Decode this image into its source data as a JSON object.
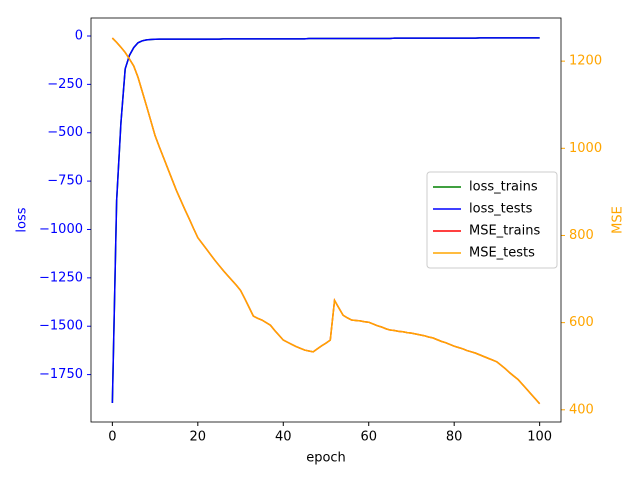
{
  "chart_data": {
    "type": "line",
    "x_label": "epoch",
    "y_label": "loss",
    "y2_label": "MSE",
    "x": [
      0,
      1,
      2,
      3,
      4,
      5,
      6,
      7,
      8,
      9,
      10,
      11,
      12,
      13,
      14,
      15,
      16,
      17,
      18,
      19,
      20,
      21,
      22,
      23,
      24,
      25,
      26,
      27,
      28,
      29,
      30,
      31,
      32,
      33,
      34,
      35,
      36,
      37,
      38,
      39,
      40,
      41,
      42,
      43,
      44,
      45,
      46,
      47,
      48,
      49,
      50,
      51,
      52,
      53,
      54,
      55,
      56,
      57,
      58,
      59,
      60,
      61,
      62,
      63,
      64,
      65,
      66,
      67,
      68,
      69,
      70,
      71,
      72,
      73,
      74,
      75,
      76,
      77,
      78,
      79,
      80,
      81,
      82,
      83,
      84,
      85,
      86,
      87,
      88,
      89,
      90,
      91,
      92,
      93,
      94,
      95,
      96,
      97,
      98,
      99,
      100
    ],
    "xlim": [
      -5,
      105
    ],
    "xticks": [
      0,
      20,
      40,
      60,
      80,
      100
    ],
    "ylim": [
      -1995,
      93
    ],
    "yticks": [
      {
        "value": 0,
        "label": "0"
      },
      {
        "value": -250,
        "label": "−250"
      },
      {
        "value": -500,
        "label": "−500"
      },
      {
        "value": -750,
        "label": "−750"
      },
      {
        "value": -1000,
        "label": "−1000"
      },
      {
        "value": -1250,
        "label": "−1250"
      },
      {
        "value": -1500,
        "label": "−1500"
      },
      {
        "value": -1750,
        "label": "−1750"
      }
    ],
    "y2lim": [
      372,
      1299
    ],
    "y2ticks": [
      400,
      600,
      800,
      1000,
      1200
    ],
    "y_color": "#0000ff",
    "y2_color": "#ffa500",
    "legend": "center right",
    "series": [
      {
        "name": "loss_trains",
        "color": "#008000",
        "axis": "y",
        "values": [
          -1897,
          -850,
          -450,
          -170,
          -100,
          -60,
          -35,
          -25,
          -20,
          -18,
          -17,
          -16,
          -16,
          -16,
          -16,
          -16,
          -16,
          -16,
          -16,
          -16,
          -16,
          -16,
          -16,
          -16,
          -16,
          -16,
          -15,
          -15,
          -15,
          -15,
          -15,
          -15,
          -15,
          -15,
          -15,
          -15,
          -15,
          -15,
          -15,
          -15,
          -15,
          -15,
          -15,
          -15,
          -15,
          -15,
          -13,
          -13,
          -13,
          -13,
          -13,
          -13,
          -13,
          -13,
          -13,
          -13,
          -13,
          -13,
          -13,
          -13,
          -13,
          -13,
          -13,
          -13,
          -13,
          -13,
          -11,
          -11,
          -11,
          -11,
          -11,
          -11,
          -11,
          -11,
          -11,
          -11,
          -11,
          -11,
          -11,
          -11,
          -11,
          -11,
          -11,
          -11,
          -11,
          -11,
          -10,
          -10,
          -10,
          -10,
          -10,
          -10,
          -10,
          -10,
          -10,
          -10,
          -10,
          -10,
          -10,
          -10,
          -10
        ]
      },
      {
        "name": "loss_tests",
        "color": "#0000ff",
        "axis": "y",
        "values": [
          -1897,
          -850,
          -450,
          -170,
          -100,
          -60,
          -35,
          -25,
          -20,
          -18,
          -17,
          -16,
          -16,
          -16,
          -16,
          -16,
          -16,
          -16,
          -16,
          -16,
          -16,
          -16,
          -16,
          -16,
          -16,
          -16,
          -15,
          -15,
          -15,
          -15,
          -15,
          -15,
          -15,
          -15,
          -15,
          -15,
          -15,
          -15,
          -15,
          -15,
          -15,
          -15,
          -15,
          -15,
          -15,
          -15,
          -13,
          -13,
          -13,
          -13,
          -13,
          -13,
          -13,
          -13,
          -13,
          -13,
          -13,
          -13,
          -13,
          -13,
          -13,
          -13,
          -13,
          -13,
          -13,
          -13,
          -11,
          -11,
          -11,
          -11,
          -11,
          -11,
          -11,
          -11,
          -11,
          -11,
          -11,
          -11,
          -11,
          -11,
          -11,
          -11,
          -11,
          -11,
          -11,
          -11,
          -10,
          -10,
          -10,
          -10,
          -10,
          -10,
          -10,
          -10,
          -10,
          -10,
          -10,
          -10,
          -10,
          -10,
          -10
        ]
      },
      {
        "name": "MSE_trains",
        "color": "#ff0000",
        "axis": "y2",
        "values": [
          1253,
          1243,
          1232,
          1220,
          1205,
          1189,
          1163,
          1130,
          1097,
          1063,
          1029,
          1003,
          978,
          953,
          928,
          903,
          881,
          859,
          838,
          816,
          795,
          782,
          769,
          756,
          743,
          731,
          719,
          708,
          697,
          686,
          674,
          655,
          635,
          615,
          610,
          606,
          600,
          594,
          582,
          571,
          560,
          555,
          550,
          545,
          541,
          537,
          535,
          533,
          540,
          547,
          553,
          560,
          651,
          634,
          617,
          611,
          606,
          605,
          604,
          602,
          601,
          597,
          593,
          590,
          586,
          583,
          582,
          580,
          579,
          577,
          576,
          574,
          572,
          570,
          567,
          565,
          561,
          557,
          554,
          550,
          546,
          543,
          540,
          536,
          533,
          530,
          526,
          522,
          518,
          514,
          510,
          502,
          494,
          485,
          477,
          469,
          458,
          447,
          436,
          425,
          414
        ]
      },
      {
        "name": "MSE_tests",
        "color": "#ffa500",
        "axis": "y2",
        "values": [
          1253,
          1243,
          1232,
          1220,
          1205,
          1189,
          1163,
          1130,
          1097,
          1063,
          1029,
          1003,
          978,
          953,
          928,
          903,
          881,
          859,
          838,
          816,
          795,
          782,
          769,
          756,
          743,
          731,
          719,
          708,
          697,
          686,
          674,
          655,
          635,
          615,
          610,
          606,
          600,
          594,
          582,
          571,
          560,
          555,
          550,
          545,
          541,
          537,
          535,
          533,
          540,
          547,
          553,
          560,
          651,
          634,
          617,
          611,
          606,
          605,
          604,
          602,
          601,
          597,
          593,
          590,
          586,
          583,
          582,
          580,
          579,
          577,
          576,
          574,
          572,
          570,
          567,
          565,
          561,
          557,
          554,
          550,
          546,
          543,
          540,
          536,
          533,
          530,
          526,
          522,
          518,
          514,
          510,
          502,
          494,
          485,
          477,
          469,
          458,
          447,
          436,
          425,
          414
        ]
      }
    ]
  }
}
